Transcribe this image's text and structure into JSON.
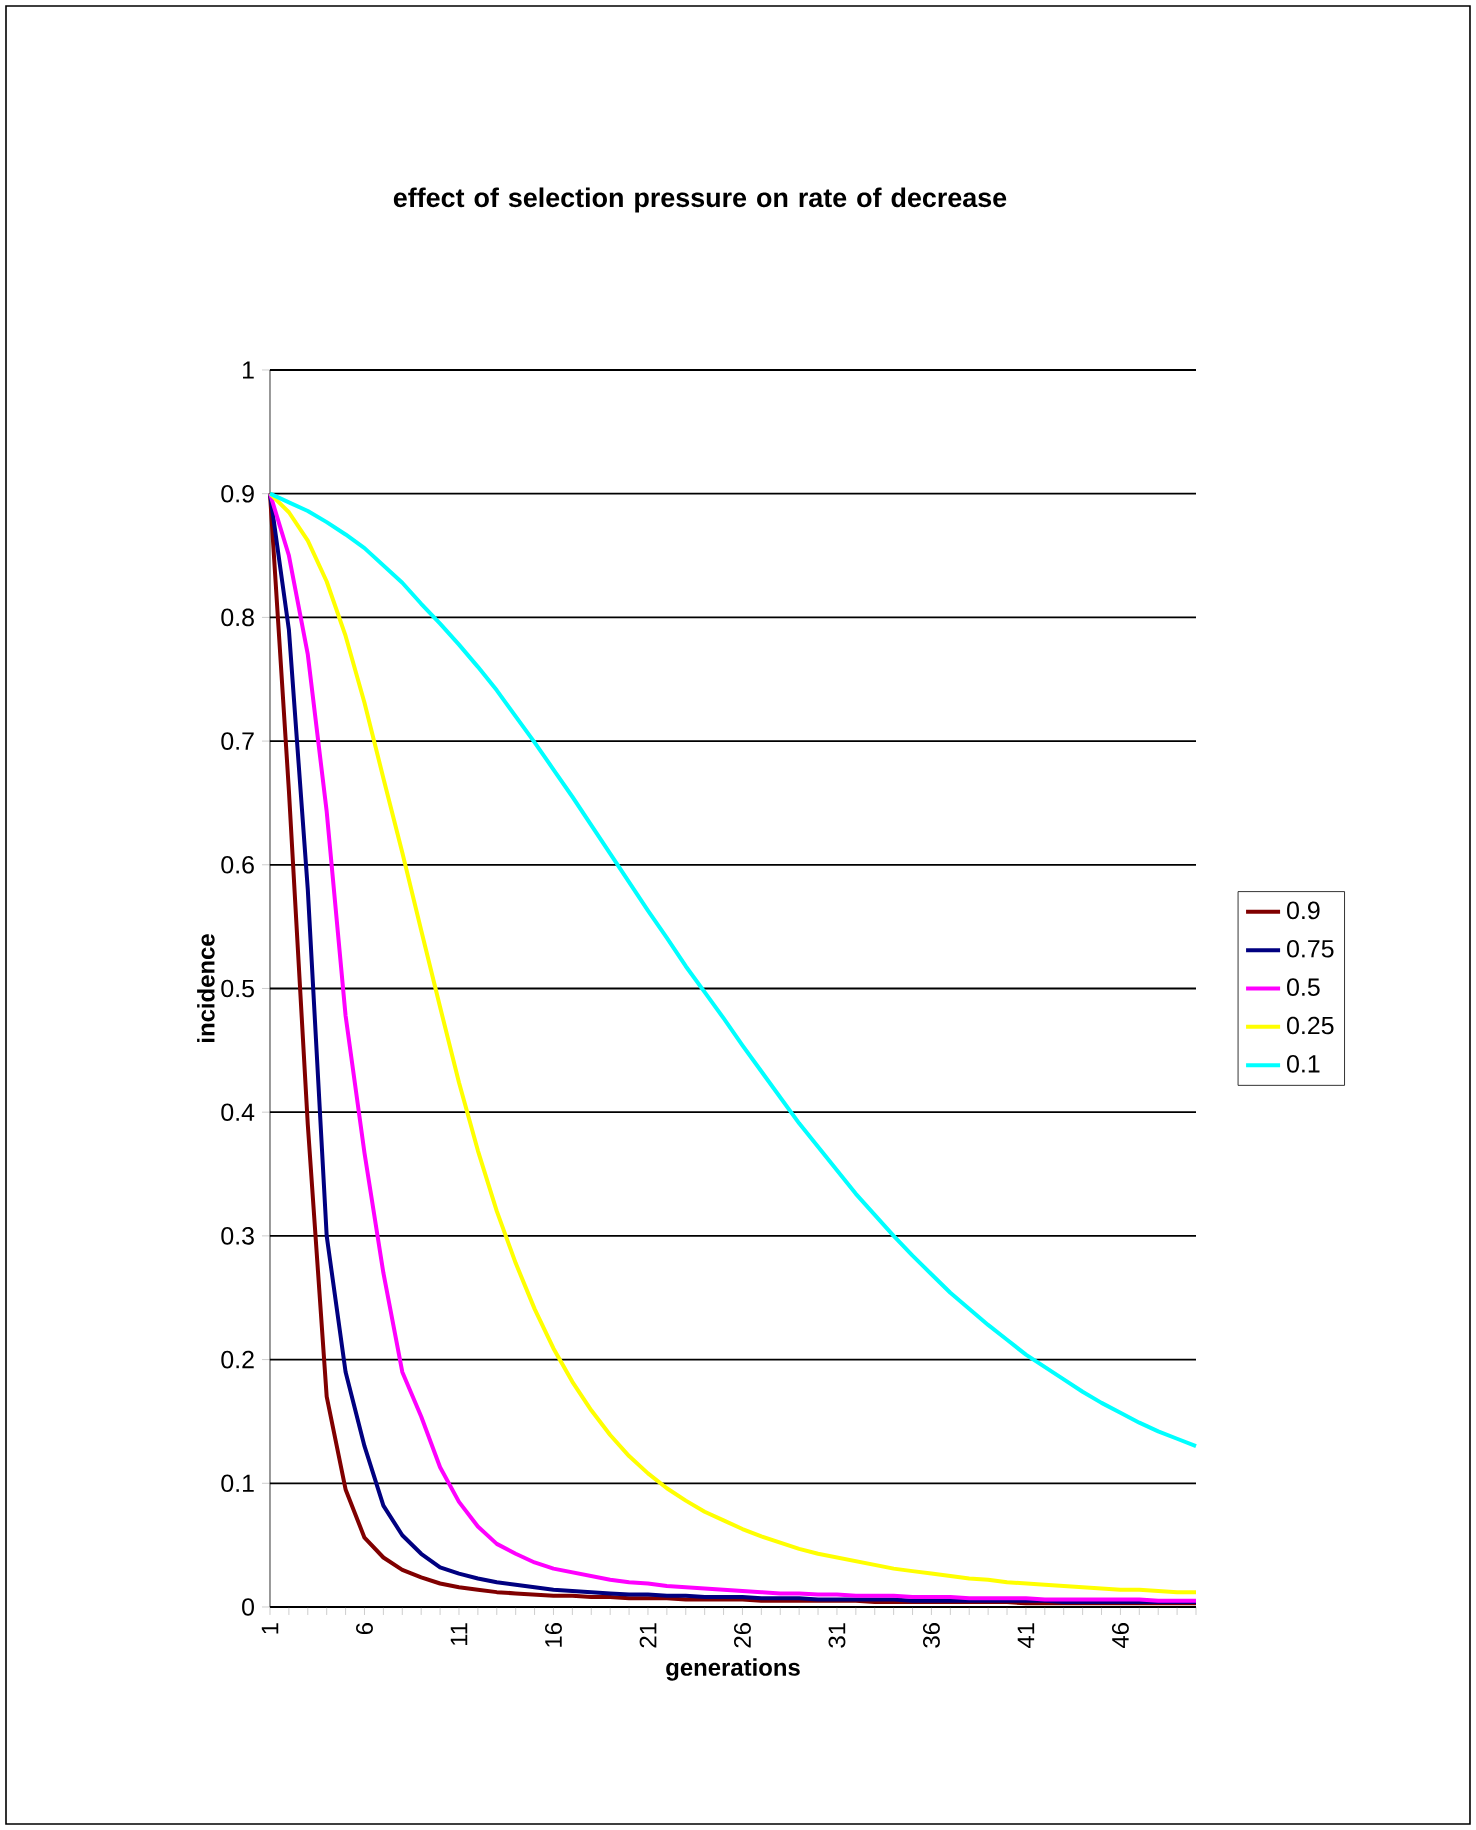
{
  "chart_data": {
    "type": "line",
    "title": "effect of selection pressure on rate of decrease",
    "xlabel": "generations",
    "ylabel": "incidence",
    "categories": [
      "1",
      null,
      null,
      null,
      null,
      "6",
      null,
      null,
      null,
      null,
      "11",
      null,
      null,
      null,
      null,
      "16",
      null,
      null,
      null,
      null,
      "21",
      null,
      null,
      null,
      null,
      "26",
      null,
      null,
      null,
      null,
      "31",
      null,
      null,
      null,
      null,
      "36",
      null,
      null,
      null,
      null,
      "41",
      null,
      null,
      null,
      null,
      "46",
      null,
      null,
      null,
      null
    ],
    "ylim": [
      0,
      1
    ],
    "yticks": [
      0,
      0.1,
      0.2,
      0.3,
      0.4,
      0.5,
      0.6,
      0.7,
      0.8,
      0.9,
      1
    ],
    "grid": "y",
    "legend": "right",
    "marker": "none",
    "line_style": "solid",
    "series": [
      {
        "name": "0.9",
        "color": "#800000",
        "values": [
          0.9,
          0.66,
          0.39,
          0.17,
          0.095,
          0.056,
          0.04,
          0.03,
          0.024,
          0.019,
          0.016,
          0.014,
          0.012,
          0.011,
          0.01,
          0.009,
          0.009,
          0.008,
          0.008,
          0.007,
          0.007,
          0.007,
          0.006,
          0.006,
          0.006,
          0.006,
          0.005,
          0.005,
          0.005,
          0.005,
          0.005,
          0.005,
          0.004,
          0.004,
          0.004,
          0.004,
          0.004,
          0.004,
          0.004,
          0.004,
          0.003,
          0.003,
          0.003,
          0.003,
          0.003,
          0.003,
          0.003,
          0.003,
          0.003,
          0.003
        ]
      },
      {
        "name": "0.75",
        "color": "#000080",
        "values": [
          0.9,
          0.79,
          0.58,
          0.3,
          0.19,
          0.13,
          0.082,
          0.058,
          0.043,
          0.032,
          0.027,
          0.023,
          0.02,
          0.018,
          0.016,
          0.014,
          0.013,
          0.012,
          0.011,
          0.01,
          0.01,
          0.009,
          0.009,
          0.008,
          0.008,
          0.008,
          0.007,
          0.007,
          0.007,
          0.006,
          0.006,
          0.006,
          0.006,
          0.006,
          0.005,
          0.005,
          0.005,
          0.005,
          0.005,
          0.005,
          0.005,
          0.005,
          0.004,
          0.004,
          0.004,
          0.004,
          0.004,
          0.004,
          0.004,
          0.004
        ]
      },
      {
        "name": "0.5",
        "color": "#ff00ff",
        "values": [
          0.9,
          0.85,
          0.77,
          0.643,
          0.478,
          0.367,
          0.27,
          0.19,
          0.154,
          0.113,
          0.085,
          0.065,
          0.051,
          0.043,
          0.036,
          0.031,
          0.028,
          0.025,
          0.022,
          0.02,
          0.019,
          0.017,
          0.016,
          0.015,
          0.014,
          0.013,
          0.012,
          0.011,
          0.011,
          0.01,
          0.01,
          0.009,
          0.009,
          0.009,
          0.008,
          0.008,
          0.008,
          0.007,
          0.007,
          0.007,
          0.007,
          0.006,
          0.006,
          0.006,
          0.006,
          0.006,
          0.006,
          0.005,
          0.005,
          0.005
        ]
      },
      {
        "name": "0.25",
        "color": "#ffff00",
        "values": [
          0.9,
          0.885,
          0.862,
          0.829,
          0.785,
          0.731,
          0.67,
          0.61,
          0.547,
          0.485,
          0.424,
          0.369,
          0.32,
          0.278,
          0.241,
          0.209,
          0.182,
          0.159,
          0.139,
          0.122,
          0.108,
          0.096,
          0.086,
          0.077,
          0.07,
          0.063,
          0.057,
          0.052,
          0.047,
          0.043,
          0.04,
          0.037,
          0.034,
          0.031,
          0.029,
          0.027,
          0.025,
          0.023,
          0.022,
          0.02,
          0.019,
          0.018,
          0.017,
          0.016,
          0.015,
          0.014,
          0.014,
          0.013,
          0.012,
          0.012
        ]
      },
      {
        "name": "0.1",
        "color": "#00ffff",
        "values": [
          0.9,
          0.893,
          0.886,
          0.877,
          0.867,
          0.856,
          0.842,
          0.828,
          0.811,
          0.795,
          0.778,
          0.76,
          0.741,
          0.72,
          0.699,
          0.677,
          0.655,
          0.632,
          0.609,
          0.586,
          0.563,
          0.541,
          0.518,
          0.497,
          0.476,
          0.454,
          0.433,
          0.412,
          0.391,
          0.372,
          0.353,
          0.334,
          0.317,
          0.3,
          0.284,
          0.269,
          0.254,
          0.241,
          0.228,
          0.216,
          0.204,
          0.194,
          0.184,
          0.174,
          0.165,
          0.157,
          0.149,
          0.142,
          0.136,
          0.13
        ]
      }
    ]
  }
}
